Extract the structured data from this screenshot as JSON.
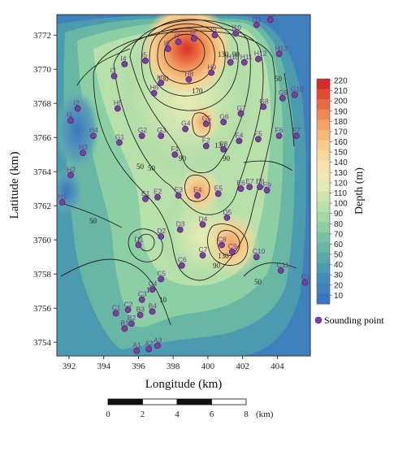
{
  "axes": {
    "xlabel": "Longitude (km)",
    "ylabel": "Latitude (km)",
    "xticks": [
      "392",
      "394",
      "396",
      "398",
      "400",
      "402",
      "404"
    ],
    "yticks": [
      "3772",
      "3770",
      "3768",
      "3766",
      "3764",
      "3762",
      "3760",
      "3758",
      "3756",
      "3754"
    ]
  },
  "colorbar": {
    "title": "Depth (m)",
    "ticks": [
      "220",
      "210",
      "200",
      "190",
      "180",
      "170",
      "160",
      "150",
      "140",
      "130",
      "120",
      "110",
      "100",
      "90",
      "80",
      "70",
      "60",
      "50",
      "40",
      "30",
      "20",
      "10"
    ],
    "colors": [
      "#d62a28",
      "#e04a35",
      "#e66a45",
      "#ec8a55",
      "#f0a467",
      "#f4b979",
      "#f7cb8b",
      "#f8d89c",
      "#f7e3ab",
      "#efe9b3",
      "#e0eab2",
      "#cce6ae",
      "#b8e0aa",
      "#a3d8a6",
      "#8dcfa5",
      "#79c3a3",
      "#68b6a4",
      "#58a8a8",
      "#4c9aaf",
      "#448db6",
      "#3f80bd",
      "#3a74c2"
    ]
  },
  "legend": {
    "label": "Sounding point",
    "color": "#7b3f9e"
  },
  "contour_labels": [
    "170",
    "130",
    "90",
    "50",
    "50",
    "130",
    "90",
    "130",
    "90",
    "50",
    "50",
    "10",
    "130",
    "90",
    "50",
    "10"
  ],
  "scalebar": {
    "labels": [
      "0",
      "2",
      "4",
      "6",
      "8"
    ],
    "unit": "(km)"
  },
  "points": [
    {
      "name": "I1",
      "x": 392.1,
      "y": 3767.0
    },
    {
      "name": "I2",
      "x": 392.5,
      "y": 3767.7
    },
    {
      "name": "I3",
      "x": 394.6,
      "y": 3769.6
    },
    {
      "name": "I4",
      "x": 395.2,
      "y": 3770.3
    },
    {
      "name": "I5",
      "x": 396.4,
      "y": 3770.5
    },
    {
      "name": "I6",
      "x": 397.7,
      "y": 3771.2
    },
    {
      "name": "I7",
      "x": 398.3,
      "y": 3771.6
    },
    {
      "name": "I8",
      "x": 399.2,
      "y": 3771.8
    },
    {
      "name": "I9",
      "x": 400.4,
      "y": 3772.0
    },
    {
      "name": "I10",
      "x": 401.6,
      "y": 3772.1
    },
    {
      "name": "I11",
      "x": 402.8,
      "y": 3772.6
    },
    {
      "name": "I12",
      "x": 403.6,
      "y": 3772.9
    },
    {
      "name": "H13",
      "x": 404.1,
      "y": 3770.9
    },
    {
      "name": "H12",
      "x": 402.9,
      "y": 3770.6
    },
    {
      "name": "H11",
      "x": 402.1,
      "y": 3770.4
    },
    {
      "name": "H10",
      "x": 401.3,
      "y": 3770.4
    },
    {
      "name": "H9",
      "x": 400.2,
      "y": 3769.8
    },
    {
      "name": "H8",
      "x": 398.9,
      "y": 3769.4
    },
    {
      "name": "H7",
      "x": 397.3,
      "y": 3769.2
    },
    {
      "name": "H6",
      "x": 396.9,
      "y": 3768.6
    },
    {
      "name": "H5",
      "x": 394.8,
      "y": 3767.7
    },
    {
      "name": "H4",
      "x": 393.4,
      "y": 3766.1
    },
    {
      "name": "H3",
      "x": 392.8,
      "y": 3765.1
    },
    {
      "name": "H2",
      "x": 392.1,
      "y": 3763.8
    },
    {
      "name": "H1",
      "x": 391.6,
      "y": 3762.2
    },
    {
      "name": "G1",
      "x": 394.9,
      "y": 3765.7
    },
    {
      "name": "G2",
      "x": 396.2,
      "y": 3766.1
    },
    {
      "name": "G3",
      "x": 397.3,
      "y": 3766.1
    },
    {
      "name": "G4",
      "x": 398.7,
      "y": 3766.5
    },
    {
      "name": "G5",
      "x": 399.9,
      "y": 3766.8
    },
    {
      "name": "G6",
      "x": 400.9,
      "y": 3766.9
    },
    {
      "name": "G7",
      "x": 401.9,
      "y": 3767.4
    },
    {
      "name": "G8",
      "x": 403.2,
      "y": 3767.8
    },
    {
      "name": "G9",
      "x": 404.3,
      "y": 3768.3
    },
    {
      "name": "G10",
      "x": 405.0,
      "y": 3768.5
    },
    {
      "name": "F1",
      "x": 398.1,
      "y": 3765.0
    },
    {
      "name": "F2",
      "x": 399.9,
      "y": 3765.5
    },
    {
      "name": "F3",
      "x": 400.9,
      "y": 3765.3
    },
    {
      "name": "F4",
      "x": 401.8,
      "y": 3765.8
    },
    {
      "name": "F5",
      "x": 402.9,
      "y": 3765.9
    },
    {
      "name": "F6",
      "x": 404.1,
      "y": 3766.1
    },
    {
      "name": "F7",
      "x": 405.1,
      "y": 3766.1
    },
    {
      "name": "E1",
      "x": 396.4,
      "y": 3762.4
    },
    {
      "name": "E2",
      "x": 397.1,
      "y": 3762.5
    },
    {
      "name": "E3",
      "x": 398.3,
      "y": 3762.6
    },
    {
      "name": "E4",
      "x": 399.4,
      "y": 3762.6
    },
    {
      "name": "E5",
      "x": 400.6,
      "y": 3762.7
    },
    {
      "name": "E6",
      "x": 401.9,
      "y": 3763.0
    },
    {
      "name": "E7",
      "x": 402.4,
      "y": 3763.1
    },
    {
      "name": "E8",
      "x": 403.0,
      "y": 3763.1
    },
    {
      "name": "E9",
      "x": 403.4,
      "y": 3762.9
    },
    {
      "name": "D1",
      "x": 396.0,
      "y": 3759.7
    },
    {
      "name": "D2",
      "x": 397.3,
      "y": 3760.2
    },
    {
      "name": "D3",
      "x": 398.4,
      "y": 3760.6
    },
    {
      "name": "D4",
      "x": 399.7,
      "y": 3760.9
    },
    {
      "name": "D5",
      "x": 401.1,
      "y": 3761.3
    },
    {
      "name": "C9",
      "x": 401.4,
      "y": 3759.3
    },
    {
      "name": "C8",
      "x": 400.8,
      "y": 3759.7
    },
    {
      "name": "C7",
      "x": 399.7,
      "y": 3759.1
    },
    {
      "name": "C10",
      "x": 402.8,
      "y": 3759.0
    },
    {
      "name": "C11",
      "x": 404.2,
      "y": 3758.2
    },
    {
      "name": "C12",
      "x": 405.6,
      "y": 3757.5
    },
    {
      "name": "C6",
      "x": 398.5,
      "y": 3758.5
    },
    {
      "name": "C5",
      "x": 397.3,
      "y": 3757.7
    },
    {
      "name": "C4",
      "x": 396.8,
      "y": 3757.1
    },
    {
      "name": "C3",
      "x": 396.2,
      "y": 3756.5
    },
    {
      "name": "C2",
      "x": 395.4,
      "y": 3755.9
    },
    {
      "name": "C1",
      "x": 394.7,
      "y": 3755.7
    },
    {
      "name": "B3",
      "x": 396.1,
      "y": 3755.6
    },
    {
      "name": "B4",
      "x": 396.8,
      "y": 3755.8
    },
    {
      "name": "B2",
      "x": 395.6,
      "y": 3755.1
    },
    {
      "name": "B1",
      "x": 395.2,
      "y": 3754.8
    },
    {
      "name": "A1",
      "x": 395.9,
      "y": 3753.5
    },
    {
      "name": "A2",
      "x": 396.6,
      "y": 3753.6
    },
    {
      "name": "A3",
      "x": 397.1,
      "y": 3753.8
    }
  ]
}
